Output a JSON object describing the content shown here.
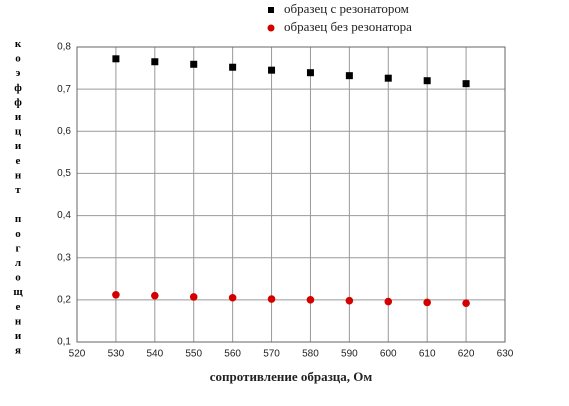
{
  "chart_data": {
    "type": "scatter",
    "x_label": "сопротивление образца, Ом",
    "y_label": "коэффициент поглощения",
    "xlim": [
      520,
      630
    ],
    "xticks": [
      520,
      530,
      540,
      550,
      560,
      570,
      580,
      590,
      600,
      610,
      620,
      630
    ],
    "ylim": [
      0.1,
      0.8
    ],
    "yticks": [
      {
        "value": 0.1,
        "label": "0,1"
      },
      {
        "value": 0.2,
        "label": "0,2"
      },
      {
        "value": 0.3,
        "label": "0,3"
      },
      {
        "value": 0.4,
        "label": "0,4"
      },
      {
        "value": 0.5,
        "label": "0,5"
      },
      {
        "value": 0.6,
        "label": "0,6"
      },
      {
        "value": 0.7,
        "label": "0,7"
      },
      {
        "value": 0.8,
        "label": "0,8"
      }
    ],
    "grid": true,
    "x": [
      530,
      540,
      550,
      560,
      570,
      580,
      590,
      600,
      610,
      620
    ],
    "series": [
      {
        "name": "образец с резонатором",
        "color": "#000000",
        "marker": "square",
        "values": [
          0.772,
          0.765,
          0.759,
          0.752,
          0.745,
          0.739,
          0.732,
          0.726,
          0.72,
          0.713
        ]
      },
      {
        "name": "образец без резонатора",
        "color": "#d40000",
        "marker": "circle",
        "values": [
          0.212,
          0.21,
          0.207,
          0.205,
          0.202,
          0.2,
          0.198,
          0.196,
          0.194,
          0.192
        ]
      }
    ]
  }
}
